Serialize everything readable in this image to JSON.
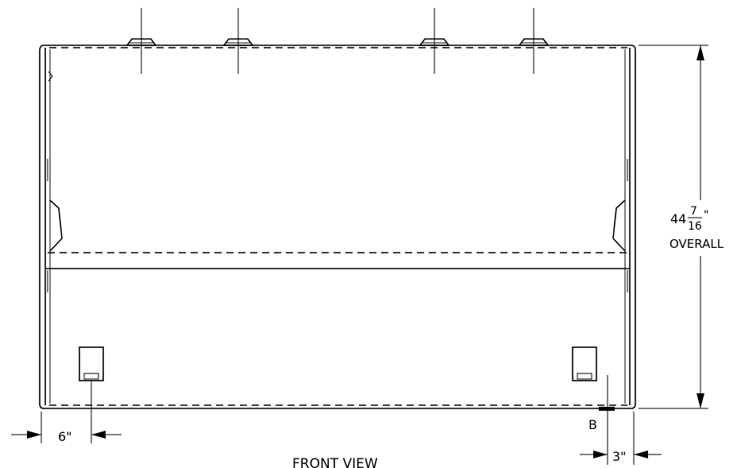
{
  "drawing": {
    "view_title": "FRONT VIEW",
    "overall_whole": "44",
    "overall_numerator": "7",
    "overall_denominator": "16",
    "overall_inch_mark": "\"",
    "overall_word": "OVERALL",
    "left_offset": "6\"",
    "right_offset": "3\"",
    "section_callout": "B"
  }
}
